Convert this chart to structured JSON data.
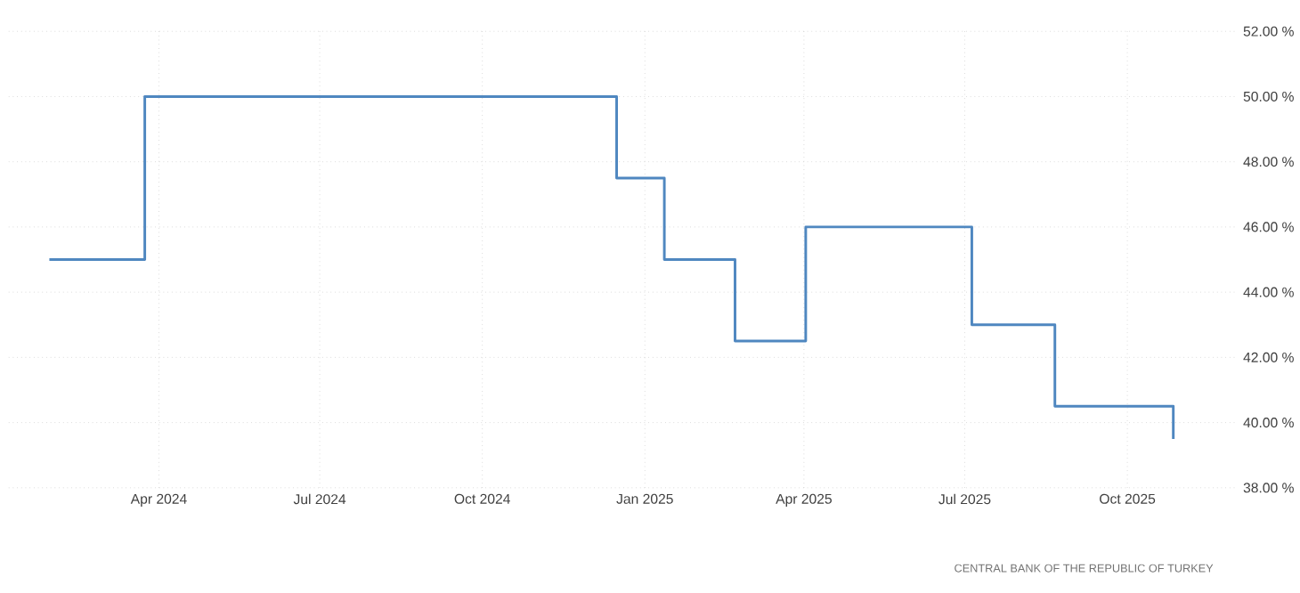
{
  "chart_data": {
    "type": "step",
    "x": [
      "2024-01-30",
      "2024-03-24",
      "2024-12-16",
      "2025-01-12",
      "2025-02-21",
      "2025-04-02",
      "2025-07-05",
      "2025-08-21",
      "2025-10-27"
    ],
    "values": [
      45,
      50,
      47.5,
      45,
      42.5,
      46,
      43,
      40.5,
      39.5
    ],
    "color": "#4f87c0",
    "xlim": [
      "2024-01-07",
      "2025-12-02"
    ],
    "xticks": [
      {
        "value": "2024-04-01",
        "label": "Apr 2024"
      },
      {
        "value": "2024-07-01",
        "label": "Jul 2024"
      },
      {
        "value": "2024-10-01",
        "label": "Oct 2024"
      },
      {
        "value": "2025-01-01",
        "label": "Jan 2025"
      },
      {
        "value": "2025-04-01",
        "label": "Apr 2025"
      },
      {
        "value": "2025-07-01",
        "label": "Jul 2025"
      },
      {
        "value": "2025-10-01",
        "label": "Oct 2025"
      }
    ],
    "ylim": [
      38,
      52
    ],
    "yticks": [
      {
        "value": 38,
        "label": "38.00 %"
      },
      {
        "value": 40,
        "label": "40.00 %"
      },
      {
        "value": 42,
        "label": "42.00 %"
      },
      {
        "value": 44,
        "label": "44.00 %"
      },
      {
        "value": 46,
        "label": "46.00 %"
      },
      {
        "value": 48,
        "label": "48.00 %"
      },
      {
        "value": 50,
        "label": "50.00 %"
      },
      {
        "value": 52,
        "label": "52.00 %"
      }
    ],
    "grid": true,
    "annotations": [
      "CENTRAL BANK OF THE REPUBLIC OF TURKEY"
    ]
  }
}
